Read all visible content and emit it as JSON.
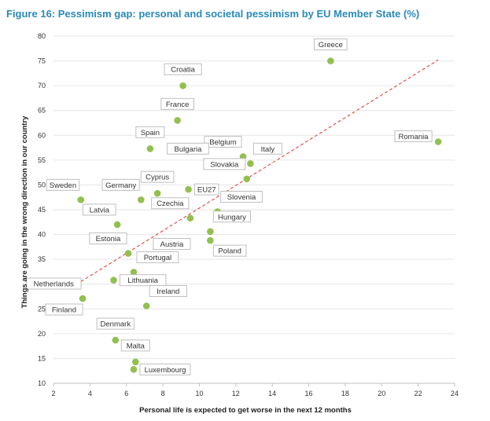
{
  "figure_title": "Figure 16: Pessimism gap: personal and societal pessimism by EU Member State (%)",
  "colors": {
    "title": "#2a8ab8",
    "point": "#92c050",
    "trend": "#e0302a",
    "grid": "#e6e6e6"
  },
  "chart_data": {
    "type": "scatter",
    "xlabel": "Personal life is expected to get worse in the next 12 months",
    "ylabel": "Things are going in the wrong direction in our country",
    "xlim": [
      2,
      24
    ],
    "ylim": [
      10,
      80
    ],
    "xticks": [
      2,
      4,
      6,
      8,
      10,
      12,
      14,
      16,
      18,
      20,
      22,
      24
    ],
    "yticks": [
      10,
      15,
      20,
      25,
      30,
      35,
      40,
      45,
      50,
      55,
      60,
      65,
      70,
      75,
      80
    ],
    "grid": true,
    "trendline": {
      "style": "dashed",
      "x": [
        3.5,
        23.1
      ],
      "y": [
        30.5,
        75.2
      ]
    },
    "points": [
      {
        "label": "Greece",
        "x": 17.2,
        "y": 75,
        "pos": "above"
      },
      {
        "label": "Croatia",
        "x": 9.1,
        "y": 70,
        "pos": "above"
      },
      {
        "label": "France",
        "x": 8.8,
        "y": 63,
        "pos": "above"
      },
      {
        "label": "Spain",
        "x": 7.3,
        "y": 57.3,
        "pos": "above"
      },
      {
        "label": "Romania",
        "x": 23.1,
        "y": 58.7,
        "pos": "left"
      },
      {
        "label": "Belgium",
        "x": 12.4,
        "y": 55.7,
        "pos": "above-left"
      },
      {
        "label": "Bulgaria",
        "x": 10.6,
        "y": 54.3,
        "pos": "above-left"
      },
      {
        "label": "Italy",
        "x": 12.8,
        "y": 54.3,
        "pos": "above-right"
      },
      {
        "label": "Slovakia",
        "x": 12.6,
        "y": 51.2,
        "pos": "above-left"
      },
      {
        "label": "Sweden",
        "x": 3.5,
        "y": 47,
        "pos": "above-left"
      },
      {
        "label": "Germany",
        "x": 6.8,
        "y": 47,
        "pos": "above-left"
      },
      {
        "label": "Cyprus",
        "x": 7.7,
        "y": 48.3,
        "pos": "above"
      },
      {
        "label": "EU27",
        "x": 9.4,
        "y": 49.1,
        "pos": "right"
      },
      {
        "label": "Slovenia",
        "x": 11,
        "y": 44.6,
        "pos": "above-right"
      },
      {
        "label": "Latvia",
        "x": 5.5,
        "y": 42,
        "pos": "above-left"
      },
      {
        "label": "Czechia",
        "x": 9.5,
        "y": 43.3,
        "pos": "above-left"
      },
      {
        "label": "Hungary",
        "x": 10.6,
        "y": 40.6,
        "pos": "above-right"
      },
      {
        "label": "Poland",
        "x": 10.6,
        "y": 38.8,
        "pos": "below-right"
      },
      {
        "label": "Estonia",
        "x": 6.1,
        "y": 36.2,
        "pos": "above-left"
      },
      {
        "label": "Austria",
        "x": 7.3,
        "y": 35.1,
        "pos": "above-right"
      },
      {
        "label": "Portugal",
        "x": 6.4,
        "y": 32.4,
        "pos": "above-right"
      },
      {
        "label": "Lithuania",
        "x": 5.3,
        "y": 30.8,
        "pos": "right"
      },
      {
        "label": "Netherlands",
        "x": 3.6,
        "y": 27.1,
        "pos": "above-left"
      },
      {
        "label": "Finland",
        "x": 3.6,
        "y": 27.1,
        "pos": "below-left"
      },
      {
        "label": "Ireland",
        "x": 7.1,
        "y": 25.6,
        "pos": "above-right"
      },
      {
        "label": "Denmark",
        "x": 5.4,
        "y": 18.7,
        "pos": "above"
      },
      {
        "label": "Malta",
        "x": 6.5,
        "y": 14.3,
        "pos": "above"
      },
      {
        "label": "Luxembourg",
        "x": 6.4,
        "y": 12.8,
        "pos": "right"
      }
    ]
  }
}
